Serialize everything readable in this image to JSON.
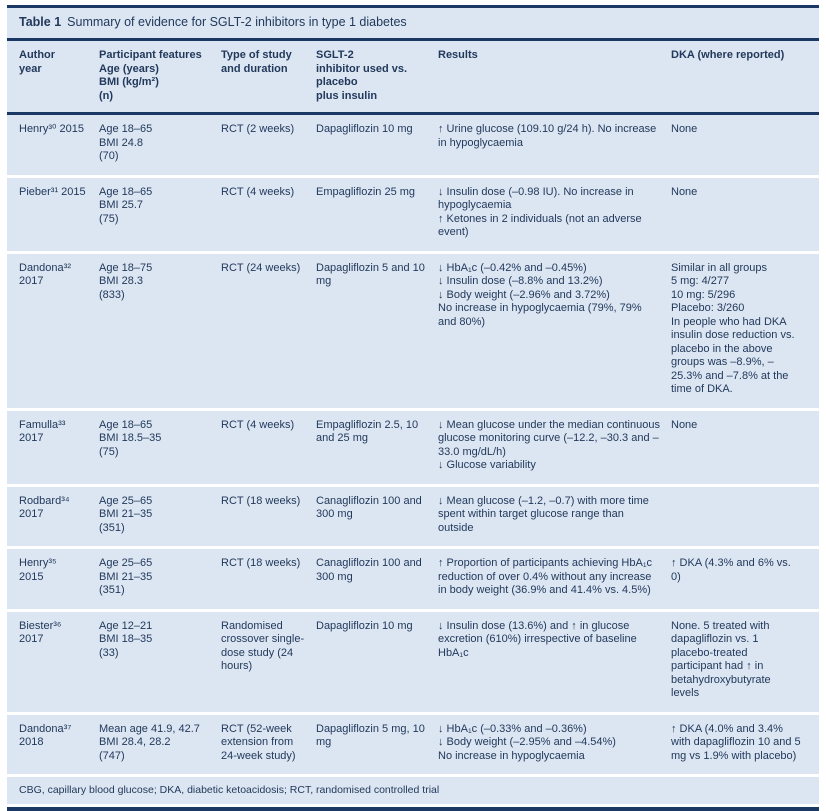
{
  "title": {
    "label": "Table 1",
    "text": "Summary of evidence for SGLT-2 inhibitors in type 1 diabetes"
  },
  "columns": [
    {
      "id": "author",
      "lines": [
        "Author",
        "year"
      ]
    },
    {
      "id": "participants",
      "lines": [
        "Participant features",
        "Age (years)",
        "BMI (kg/m²)",
        "(n)"
      ]
    },
    {
      "id": "study",
      "lines": [
        "Type of study",
        "and duration"
      ]
    },
    {
      "id": "inhibitor",
      "lines": [
        "SGLT-2",
        "inhibitor used vs.",
        "placebo",
        "plus insulin"
      ]
    },
    {
      "id": "results",
      "lines": [
        "Results"
      ]
    },
    {
      "id": "dka",
      "lines": [
        "DKA (where reported)"
      ]
    }
  ],
  "rows": [
    {
      "author": [
        "Henry³⁰ 2015"
      ],
      "participants": [
        "Age 18–65",
        "BMI 24.8",
        "(70)"
      ],
      "study": [
        "RCT (2 weeks)"
      ],
      "inhibitor": [
        "Dapagliflozin 10 mg"
      ],
      "results": [
        "↑ Urine glucose (109.10 g/24 h). No increase in hypoglycaemia"
      ],
      "dka": [
        "None"
      ]
    },
    {
      "author": [
        "Pieber³¹ 2015"
      ],
      "participants": [
        "Age 18–65",
        "BMI 25.7",
        "(75)"
      ],
      "study": [
        "RCT (4 weeks)"
      ],
      "inhibitor": [
        "Empagliflozin 25 mg"
      ],
      "results": [
        "↓ Insulin dose (–0.98 IU). No increase in hypoglycaemia",
        "↑ Ketones in 2 individuals (not an adverse event)"
      ],
      "dka": [
        "None"
      ]
    },
    {
      "author": [
        "Dandona³²",
        "2017"
      ],
      "participants": [
        "Age 18–75",
        "BMI 28.3",
        "(833)"
      ],
      "study": [
        "RCT (24 weeks)"
      ],
      "inhibitor": [
        "Dapagliflozin 5 and 10 mg"
      ],
      "results": [
        "↓ HbA₁c (–0.42% and –0.45%)",
        "↓ Insulin dose (–8.8% and 13.2%)",
        "↓ Body weight (–2.96% and 3.72%)",
        "No increase in hypoglycaemia (79%, 79% and 80%)"
      ],
      "dka": [
        "Similar in all groups",
        "5 mg: 4/277",
        "10 mg: 5/296",
        "Placebo: 3/260",
        "In people who had DKA insulin dose reduction vs. placebo in the above groups was –8.9%, –25.3% and –7.8% at the time of DKA."
      ]
    },
    {
      "author": [
        "Famulla³³",
        "2017"
      ],
      "participants": [
        "Age 18–65",
        "BMI 18.5–35",
        "(75)"
      ],
      "study": [
        "RCT (4 weeks)"
      ],
      "inhibitor": [
        "Empagliflozin 2.5, 10 and 25 mg"
      ],
      "results": [
        "↓ Mean glucose under the median continuous glucose monitoring curve (–12.2, –30.3 and –33.0 mg/dL/h)",
        "↓ Glucose variability"
      ],
      "dka": [
        "None"
      ]
    },
    {
      "author": [
        "Rodbard³⁴",
        "2017"
      ],
      "participants": [
        "Age 25–65",
        "BMI 21–35",
        "(351)"
      ],
      "study": [
        "RCT (18 weeks)"
      ],
      "inhibitor": [
        "Canagliflozin 100 and 300 mg"
      ],
      "results": [
        "↓ Mean glucose (–1.2, –0.7) with more time spent within target glucose range than outside"
      ],
      "dka": []
    },
    {
      "author": [
        "Henry³⁵",
        "2015"
      ],
      "participants": [
        "Age 25–65",
        "BMI 21–35",
        "(351)"
      ],
      "study": [
        "RCT (18 weeks)"
      ],
      "inhibitor": [
        "Canagliflozin 100 and 300 mg"
      ],
      "results": [
        "↑ Proportion of participants achieving HbA₁c reduction of over 0.4% without any increase in body weight (36.9% and 41.4% vs. 4.5%)"
      ],
      "dka": [
        "↑ DKA (4.3% and 6% vs. 0)"
      ]
    },
    {
      "author": [
        "Biester³⁶",
        "2017"
      ],
      "participants": [
        "Age 12–21",
        "BMI 18–35",
        "(33)"
      ],
      "study": [
        "Randomised crossover single-dose study (24 hours)"
      ],
      "inhibitor": [
        "Dapagliflozin 10 mg"
      ],
      "results": [
        "↓ Insulin dose (13.6%) and ↑ in glucose excretion (610%) irrespective of baseline HbA₁c"
      ],
      "dka": [
        "None. 5 treated with dapagliflozin vs. 1 placebo-treated participant had ↑ in betahydroxybutyrate levels"
      ]
    },
    {
      "author": [
        "Dandona³⁷",
        "2018"
      ],
      "participants": [
        "Mean age 41.9, 42.7",
        "BMI 28.4, 28.2",
        "(747)"
      ],
      "study": [
        "RCT (52-week extension from 24-week study)"
      ],
      "inhibitor": [
        "Dapagliflozin 5 mg, 10 mg"
      ],
      "results": [
        "↓ HbA₁c (–0.33% and –0.36%)",
        "↓ Body weight (–2.95% and –4.54%)",
        "No increase in hypoglycaemia"
      ],
      "dka": [
        "↑ DKA (4.0% and 3.4% with dapagliflozin 10 and 5 mg vs 1.9% with placebo)"
      ]
    }
  ],
  "footnote": "CBG, capillary blood glucose; DKA, diabetic ketoacidosis; RCT, randomised controlled trial",
  "colors": {
    "band_background": "#dce6f2",
    "rule_navy": "#1b3764",
    "text": "#22395c",
    "gap_white": "#ffffff"
  }
}
